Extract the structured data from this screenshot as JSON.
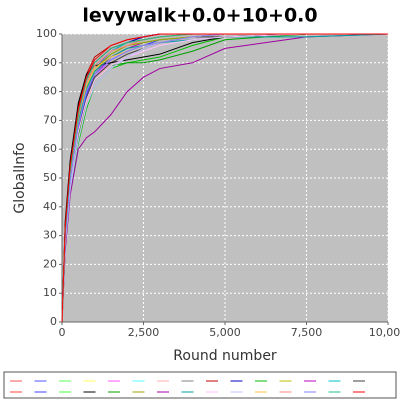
{
  "chart_data": {
    "type": "line",
    "title": "levywalk+0.0+10+0.0",
    "xlabel": "Round number",
    "ylabel": "GlobalInfo",
    "x": [
      0,
      100,
      250,
      500,
      750,
      1000,
      1500,
      2000,
      2500,
      3000,
      4000,
      5000,
      7500,
      10000
    ],
    "xlim": [
      0,
      10000
    ],
    "ylim": [
      0,
      100
    ],
    "xticks": [
      0,
      {
        "value": 2500,
        "label": "2,500"
      },
      {
        "value": 5000,
        "label": "5,000"
      },
      {
        "value": 7500,
        "label": "7,500"
      },
      {
        "value": 10000,
        "label": "10,000"
      }
    ],
    "yticks": [
      0,
      10,
      20,
      30,
      40,
      50,
      60,
      70,
      80,
      90,
      100
    ],
    "grid": true,
    "series": [
      {
        "color": "#ff5555",
        "values": [
          0,
          32,
          52,
          72,
          84,
          90,
          95,
          97,
          98,
          99,
          100,
          100,
          100,
          100
        ]
      },
      {
        "color": "#5555ff",
        "values": [
          0,
          30,
          50,
          70,
          82,
          88,
          94,
          97,
          98,
          99,
          100,
          100,
          100,
          100
        ]
      },
      {
        "color": "#55ff55",
        "values": [
          0,
          28,
          48,
          68,
          80,
          86,
          92,
          95,
          97,
          98,
          99,
          100,
          100,
          100
        ]
      },
      {
        "color": "#ffff55",
        "values": [
          0,
          31,
          51,
          71,
          83,
          89,
          94,
          96,
          98,
          99,
          100,
          100,
          100,
          100
        ]
      },
      {
        "color": "#ff55ff",
        "values": [
          0,
          29,
          49,
          67,
          78,
          85,
          91,
          94,
          96,
          97,
          99,
          100,
          100,
          100
        ]
      },
      {
        "color": "#55ffff",
        "values": [
          0,
          33,
          54,
          74,
          85,
          91,
          96,
          98,
          99,
          100,
          100,
          100,
          100,
          100
        ]
      },
      {
        "color": "#ffafaf",
        "values": [
          0,
          27,
          46,
          64,
          76,
          84,
          90,
          93,
          95,
          97,
          99,
          100,
          100,
          100
        ]
      },
      {
        "color": "#808080",
        "values": [
          0,
          30,
          51,
          70,
          81,
          87,
          93,
          96,
          98,
          99,
          100,
          100,
          100,
          100
        ]
      },
      {
        "color": "#c00000",
        "values": [
          0,
          34,
          55,
          75,
          86,
          92,
          96,
          98,
          99,
          100,
          100,
          100,
          100,
          100
        ]
      },
      {
        "color": "#0000c0",
        "values": [
          0,
          32,
          53,
          73,
          85,
          90,
          95,
          97,
          99,
          100,
          100,
          100,
          100,
          100
        ]
      },
      {
        "color": "#00c000",
        "values": [
          0,
          26,
          45,
          62,
          74,
          82,
          88,
          90,
          91,
          92,
          96,
          99,
          100,
          100
        ]
      },
      {
        "color": "#c0c000",
        "values": [
          0,
          30,
          50,
          69,
          80,
          87,
          92,
          95,
          97,
          98,
          99,
          100,
          100,
          100
        ]
      },
      {
        "color": "#c000c0",
        "values": [
          0,
          29,
          48,
          66,
          79,
          86,
          92,
          95,
          97,
          98,
          99,
          100,
          100,
          100
        ]
      },
      {
        "color": "#00c0c0",
        "values": [
          0,
          31,
          52,
          72,
          83,
          89,
          94,
          97,
          98,
          99,
          100,
          100,
          100,
          100
        ]
      },
      {
        "color": "#404040",
        "values": [
          0,
          28,
          47,
          66,
          78,
          85,
          90,
          93,
          95,
          97,
          99,
          99,
          100,
          100
        ]
      },
      {
        "color": "#ff4040",
        "values": [
          0,
          33,
          53,
          73,
          84,
          90,
          95,
          97,
          98,
          99,
          100,
          100,
          100,
          100
        ]
      },
      {
        "color": "#4040ff",
        "values": [
          0,
          30,
          49,
          68,
          79,
          86,
          91,
          94,
          96,
          98,
          99,
          100,
          100,
          100
        ]
      },
      {
        "color": "#40ff40",
        "values": [
          0,
          29,
          50,
          69,
          81,
          88,
          93,
          96,
          97,
          98,
          99,
          100,
          100,
          100
        ]
      },
      {
        "color": "#000000",
        "values": [
          0,
          35,
          56,
          76,
          86,
          89,
          90,
          91,
          92,
          93,
          97,
          99,
          100,
          100
        ]
      },
      {
        "color": "#00a000",
        "values": [
          0,
          27,
          47,
          65,
          77,
          84,
          89,
          90,
          90,
          91,
          94,
          98,
          100,
          100
        ]
      },
      {
        "color": "#a0a000",
        "values": [
          0,
          31,
          51,
          70,
          82,
          88,
          93,
          96,
          97,
          98,
          99,
          100,
          100,
          100
        ]
      },
      {
        "color": "#a000a0",
        "values": [
          0,
          25,
          44,
          60,
          64,
          66,
          72,
          80,
          85,
          88,
          90,
          95,
          99,
          100
        ]
      },
      {
        "color": "#00a0a0",
        "values": [
          0,
          30,
          50,
          70,
          81,
          87,
          92,
          95,
          96,
          97,
          98,
          99,
          99,
          100
        ]
      },
      {
        "color": "#ffc0ff",
        "values": [
          0,
          28,
          48,
          66,
          77,
          84,
          89,
          92,
          94,
          96,
          98,
          99,
          100,
          100
        ]
      },
      {
        "color": "#c0c0ff",
        "values": [
          0,
          27,
          46,
          63,
          75,
          82,
          88,
          92,
          95,
          97,
          99,
          100,
          100,
          100
        ]
      },
      {
        "color": "#ffc040",
        "values": [
          0,
          32,
          52,
          71,
          82,
          88,
          92,
          94,
          96,
          97,
          99,
          100,
          100,
          100
        ]
      },
      {
        "color": "#ff8080",
        "values": [
          0,
          30,
          51,
          71,
          83,
          89,
          94,
          96,
          98,
          99,
          100,
          100,
          100,
          100
        ]
      },
      {
        "color": "#8080ff",
        "values": [
          0,
          29,
          49,
          68,
          80,
          86,
          91,
          94,
          96,
          97,
          99,
          100,
          100,
          100
        ]
      },
      {
        "color": "#20c080",
        "values": [
          0,
          31,
          52,
          72,
          84,
          90,
          95,
          97,
          98,
          99,
          100,
          100,
          100,
          100
        ]
      },
      {
        "color": "#ff0000",
        "values": [
          0,
          33,
          54,
          74,
          85,
          91,
          96,
          98,
          99,
          100,
          100,
          100,
          100,
          100
        ]
      }
    ]
  }
}
